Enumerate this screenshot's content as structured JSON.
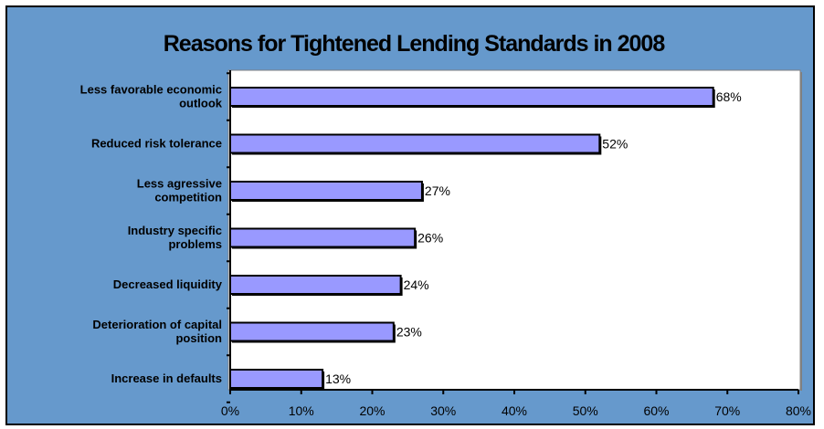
{
  "chart_data": {
    "type": "bar",
    "orientation": "horizontal",
    "title": "Reasons for Tightened Lending Standards in 2008",
    "xlabel": "",
    "ylabel": "",
    "categories": [
      [
        "Less favorable economic",
        "outlook"
      ],
      [
        "Reduced risk tolerance"
      ],
      [
        "Less agressive",
        "competition"
      ],
      [
        "Industry specific",
        "problems"
      ],
      [
        "Decreased liquidity"
      ],
      [
        "Deterioration of capital",
        "position"
      ],
      [
        "Increase in defaults"
      ]
    ],
    "values": [
      68,
      52,
      27,
      26,
      24,
      23,
      13
    ],
    "data_labels": [
      "68%",
      "52%",
      "27%",
      "26%",
      "24%",
      "23%",
      "13%"
    ],
    "xlim": [
      0,
      80
    ],
    "xticks": [
      0,
      10,
      20,
      30,
      40,
      50,
      60,
      70,
      80
    ],
    "xtick_labels": [
      "0%",
      "10%",
      "20%",
      "30%",
      "40%",
      "50%",
      "60%",
      "70%",
      "80%"
    ],
    "grid": false,
    "legend": "none",
    "colors": {
      "background": "#6699cc",
      "plot_area": "#ffffff",
      "bar_fill": "#9999ff",
      "bar_edge": "#000000"
    }
  }
}
